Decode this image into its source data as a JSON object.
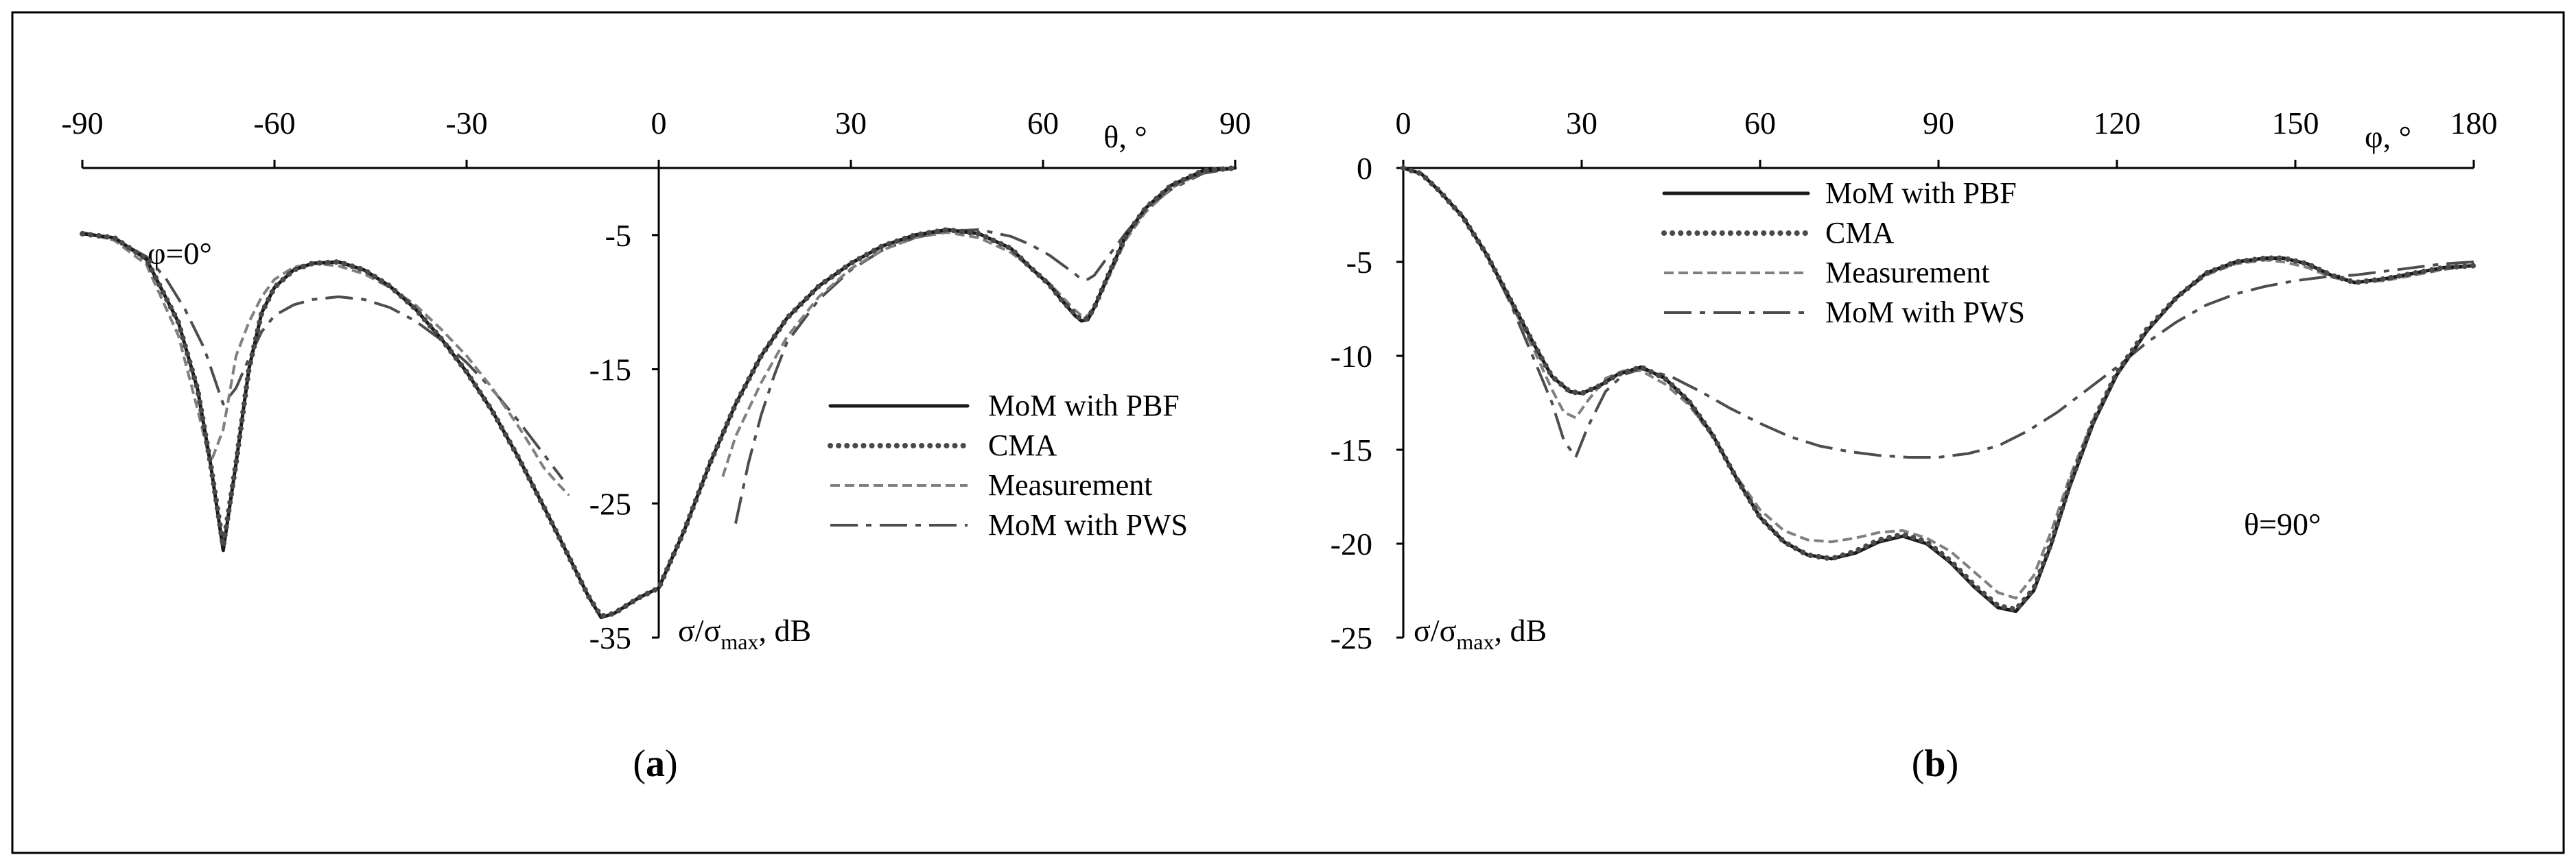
{
  "chart_data": [
    {
      "type": "line",
      "panel_caption": "a",
      "x_axis_label": "θ, °",
      "y_axis_label": "σ/σmax, dB",
      "xlim": [
        -90,
        90
      ],
      "ylim": [
        -35,
        0
      ],
      "x_ticks": [
        "-90",
        "-60",
        "-30",
        "0",
        "30",
        "60",
        "90"
      ],
      "x_tick_values": [
        -90,
        -60,
        -30,
        0,
        30,
        60,
        90
      ],
      "y_ticks": [
        "-5",
        "-15",
        "-25",
        "-35"
      ],
      "y_tick_values": [
        -5,
        -15,
        -25,
        -35
      ],
      "annotation": "φ=0°",
      "legend_position": "right",
      "series": [
        {
          "name": "MoM with PBF",
          "style": "solid",
          "x": [
            -90,
            -85,
            -80,
            -75,
            -72,
            -70,
            -68,
            -66,
            -64,
            -62,
            -60,
            -57,
            -54,
            -50,
            -46,
            -42,
            -38,
            -34,
            -30,
            -26,
            -22,
            -18,
            -14,
            -11,
            -9,
            -7,
            -5,
            -3,
            0,
            4,
            8,
            12,
            16,
            20,
            25,
            30,
            35,
            40,
            45,
            50,
            55,
            58,
            61,
            63,
            65,
            66,
            67,
            68,
            70,
            73,
            76,
            80,
            85,
            90
          ],
          "y": [
            -4.9,
            -5.2,
            -6.8,
            -11.5,
            -16.5,
            -22,
            -28.5,
            -22,
            -15,
            -10.8,
            -8.9,
            -7.6,
            -7.1,
            -7,
            -7.6,
            -8.8,
            -10.5,
            -12.7,
            -15.2,
            -18.1,
            -21.5,
            -25.2,
            -29,
            -31.9,
            -33.5,
            -33.2,
            -32.6,
            -32,
            -31.3,
            -27,
            -22,
            -17.6,
            -14,
            -11.2,
            -8.8,
            -7.1,
            -5.8,
            -5,
            -4.6,
            -4.9,
            -6,
            -7.4,
            -8.7,
            -9.9,
            -11,
            -11.4,
            -11.3,
            -10.4,
            -8.2,
            -5,
            -3,
            -1.3,
            -0.2,
            0
          ]
        },
        {
          "name": "CMA",
          "style": "dotted",
          "x": [
            -90,
            -85,
            -80,
            -75,
            -72,
            -70,
            -68,
            -66,
            -64,
            -62,
            -60,
            -57,
            -54,
            -50,
            -46,
            -42,
            -38,
            -34,
            -30,
            -26,
            -22,
            -18,
            -14,
            -11,
            -9,
            -7,
            -5,
            -3,
            0,
            4,
            8,
            12,
            16,
            20,
            25,
            30,
            35,
            40,
            45,
            50,
            55,
            58,
            61,
            63,
            65,
            66,
            67,
            68,
            70,
            73,
            76,
            80,
            85,
            90
          ],
          "y": [
            -4.9,
            -5.2,
            -6.8,
            -11.5,
            -16.5,
            -22,
            -28.2,
            -22,
            -15,
            -10.8,
            -8.9,
            -7.6,
            -7.1,
            -7,
            -7.6,
            -8.8,
            -10.5,
            -12.7,
            -15.2,
            -18.1,
            -21.5,
            -25.2,
            -29,
            -31.9,
            -33.4,
            -33.2,
            -32.6,
            -32,
            -31.3,
            -27,
            -22,
            -17.6,
            -14,
            -11.2,
            -8.8,
            -7.1,
            -5.8,
            -5,
            -4.6,
            -4.9,
            -6,
            -7.4,
            -8.7,
            -9.9,
            -10.9,
            -11.3,
            -11.2,
            -10.4,
            -8.2,
            -5,
            -3,
            -1.3,
            -0.2,
            0
          ]
        },
        {
          "name": "Measurement",
          "style": "dashed",
          "x": [
            -90,
            -85,
            -80,
            -75,
            -72,
            -70,
            -68,
            -66,
            -64,
            -62,
            -60,
            -57,
            -54,
            -50,
            -46,
            -42,
            -38,
            -34,
            -30,
            -26,
            -22,
            -20,
            -18,
            -16,
            -14,
            null,
            10,
            12,
            16,
            20,
            25,
            30,
            35,
            40,
            45,
            50,
            55,
            58,
            61,
            63,
            65,
            66,
            67,
            68,
            70,
            73,
            76,
            80,
            85,
            90
          ],
          "y": [
            -4.8,
            -5.4,
            -7.2,
            -12.5,
            -18,
            -22,
            -19.5,
            -14,
            -11.5,
            -9.6,
            -8.3,
            -7.4,
            -7.1,
            -7.3,
            -7.9,
            -8.9,
            -10.2,
            -12,
            -14,
            -16.4,
            -19.2,
            -20.7,
            -22.3,
            -23.4,
            -24.4,
            null,
            -23,
            -20,
            -16,
            -12.6,
            -9.6,
            -7.5,
            -6.1,
            -5.2,
            -4.8,
            -5.2,
            -6.3,
            -7.4,
            -8.6,
            -9.6,
            -10.6,
            -11,
            -11,
            -10.3,
            -8.4,
            -5.3,
            -3.3,
            -1.5,
            -0.3,
            0
          ]
        },
        {
          "name": "MoM with PWS",
          "style": "dashdot",
          "x": [
            -90,
            -85,
            -80,
            -77,
            -74,
            -71,
            -68,
            -66,
            -64,
            -62,
            -60,
            -57,
            -54,
            -50,
            -46,
            -42,
            -38,
            -34,
            -30,
            -26,
            -22,
            -18,
            -15,
            null,
            12,
            14,
            16,
            18,
            20,
            25,
            30,
            35,
            40,
            45,
            50,
            55,
            58,
            61,
            63,
            65,
            66,
            67,
            68,
            70,
            73,
            76,
            80,
            85,
            90
          ],
          "y": [
            -4.8,
            -5.3,
            -6.6,
            -8.2,
            -10.5,
            -13.4,
            -17.6,
            -16.4,
            -14.2,
            -12.2,
            -11,
            -10.2,
            -9.8,
            -9.6,
            -9.8,
            -10.4,
            -11.4,
            -12.8,
            -14.5,
            -16.5,
            -18.8,
            -21.3,
            -23.2,
            null,
            -26.5,
            -22,
            -18.4,
            -15.5,
            -13,
            -9.8,
            -7.6,
            -6.1,
            -5.2,
            -4.7,
            -4.6,
            -5.1,
            -5.7,
            -6.5,
            -7.2,
            -7.9,
            -8.3,
            -8.3,
            -8,
            -6.7,
            -4.8,
            -3.1,
            -1.6,
            -0.4,
            0
          ]
        }
      ]
    },
    {
      "type": "line",
      "panel_caption": "b",
      "x_axis_label": "φ, °",
      "y_axis_label": "σ/σmax, dB",
      "xlim": [
        0,
        180
      ],
      "ylim": [
        -25,
        0
      ],
      "x_ticks": [
        "0",
        "30",
        "60",
        "90",
        "120",
        "150",
        "180"
      ],
      "x_tick_values": [
        0,
        30,
        60,
        90,
        120,
        150,
        180
      ],
      "y_ticks": [
        "0",
        "-5",
        "-10",
        "-15",
        "-20",
        "-25"
      ],
      "y_tick_values": [
        0,
        -5,
        -10,
        -15,
        -20,
        -25
      ],
      "annotation": "θ=90°",
      "legend_position": "top-center",
      "series": [
        {
          "name": "MoM with PBF",
          "style": "solid",
          "x": [
            0,
            3,
            6,
            10,
            14,
            18,
            22,
            25,
            28,
            30,
            33,
            36,
            40,
            44,
            48,
            52,
            56,
            60,
            64,
            68,
            72,
            76,
            80,
            84,
            88,
            92,
            96,
            100,
            103,
            106,
            109,
            112,
            116,
            120,
            125,
            130,
            135,
            140,
            145,
            148,
            152,
            156,
            160,
            165,
            170,
            175,
            180
          ],
          "y": [
            0,
            -0.3,
            -1.2,
            -2.6,
            -4.6,
            -7,
            -9.4,
            -11.1,
            -11.9,
            -12,
            -11.6,
            -11,
            -10.6,
            -11.2,
            -12.4,
            -14.2,
            -16.5,
            -18.6,
            -19.9,
            -20.6,
            -20.8,
            -20.5,
            -19.9,
            -19.6,
            -20,
            -21,
            -22.3,
            -23.4,
            -23.6,
            -22.5,
            -20,
            -17,
            -13.6,
            -11,
            -8.7,
            -6.9,
            -5.6,
            -5,
            -4.8,
            -4.8,
            -5.1,
            -5.7,
            -6.1,
            -5.9,
            -5.6,
            -5.3,
            -5.2
          ]
        },
        {
          "name": "CMA",
          "style": "dotted",
          "x": [
            0,
            3,
            6,
            10,
            14,
            18,
            22,
            25,
            28,
            30,
            33,
            36,
            40,
            44,
            48,
            52,
            56,
            60,
            64,
            68,
            72,
            76,
            80,
            84,
            88,
            92,
            96,
            100,
            103,
            106,
            109,
            112,
            116,
            120,
            125,
            130,
            135,
            140,
            145,
            148,
            152,
            156,
            160,
            165,
            170,
            175,
            180
          ],
          "y": [
            0,
            -0.3,
            -1.2,
            -2.6,
            -4.6,
            -7,
            -9.4,
            -11.1,
            -11.9,
            -12,
            -11.6,
            -11,
            -10.6,
            -11.2,
            -12.4,
            -14.2,
            -16.5,
            -18.6,
            -19.9,
            -20.6,
            -20.8,
            -20.4,
            -19.8,
            -19.5,
            -19.9,
            -20.9,
            -22.2,
            -23.3,
            -23.5,
            -22.4,
            -19.9,
            -16.9,
            -13.5,
            -10.9,
            -8.6,
            -6.9,
            -5.6,
            -5,
            -4.8,
            -4.8,
            -5.1,
            -5.7,
            -6.1,
            -5.9,
            -5.6,
            -5.3,
            -5.2
          ]
        },
        {
          "name": "Measurement",
          "style": "dashed",
          "x": [
            0,
            3,
            6,
            10,
            14,
            18,
            22,
            25,
            27,
            29,
            31,
            34,
            37,
            40,
            44,
            48,
            52,
            56,
            60,
            64,
            68,
            72,
            76,
            80,
            84,
            88,
            92,
            96,
            100,
            103,
            106,
            109,
            112,
            116,
            120,
            125,
            130,
            135,
            140,
            145,
            148,
            152,
            156,
            160,
            165,
            170,
            175,
            180
          ],
          "y": [
            0,
            -0.3,
            -1.2,
            -2.6,
            -4.6,
            -7.1,
            -9.7,
            -11.8,
            -13,
            -13.3,
            -12.4,
            -11.2,
            -10.8,
            -10.8,
            -11.5,
            -12.6,
            -14.3,
            -16.4,
            -18.2,
            -19.3,
            -19.8,
            -19.9,
            -19.7,
            -19.4,
            -19.3,
            -19.7,
            -20.4,
            -21.5,
            -22.6,
            -22.9,
            -21.7,
            -19.3,
            -16.5,
            -13.4,
            -10.9,
            -8.7,
            -6.9,
            -5.7,
            -5.1,
            -4.9,
            -5,
            -5.3,
            -5.8,
            -6.1,
            -6,
            -5.7,
            -5.4,
            -5.2
          ]
        },
        {
          "name": "MoM with PWS",
          "style": "dashdot",
          "x": [
            0,
            3,
            6,
            10,
            14,
            18,
            22,
            25,
            27,
            29,
            31,
            34,
            37,
            40,
            45,
            50,
            55,
            60,
            65,
            70,
            75,
            80,
            85,
            90,
            95,
            100,
            105,
            110,
            115,
            120,
            125,
            130,
            135,
            140,
            145,
            150,
            155,
            160,
            165,
            170,
            175,
            180
          ],
          "y": [
            0,
            -0.3,
            -1.2,
            -2.6,
            -4.6,
            -7.2,
            -10.2,
            -12.5,
            -14.5,
            -15.4,
            -13.8,
            -11.9,
            -11,
            -10.7,
            -11.1,
            -11.9,
            -12.8,
            -13.6,
            -14.3,
            -14.8,
            -15.1,
            -15.3,
            -15.4,
            -15.4,
            -15.2,
            -14.8,
            -14,
            -13,
            -11.8,
            -10.6,
            -9.3,
            -8.2,
            -7.3,
            -6.7,
            -6.3,
            -6,
            -5.8,
            -5.7,
            -5.5,
            -5.3,
            -5.1,
            -5
          ]
        }
      ]
    }
  ],
  "captions": {
    "a_open": "(",
    "a_letter": "a",
    "a_close": ")",
    "b_open": "(",
    "b_letter": "b",
    "b_close": ")"
  },
  "colors": {
    "pbf": "#1a1a1a",
    "cma": "#4a4a4a",
    "measurement": "#808080",
    "pws": "#4d4d4d",
    "frame": "#000000"
  }
}
